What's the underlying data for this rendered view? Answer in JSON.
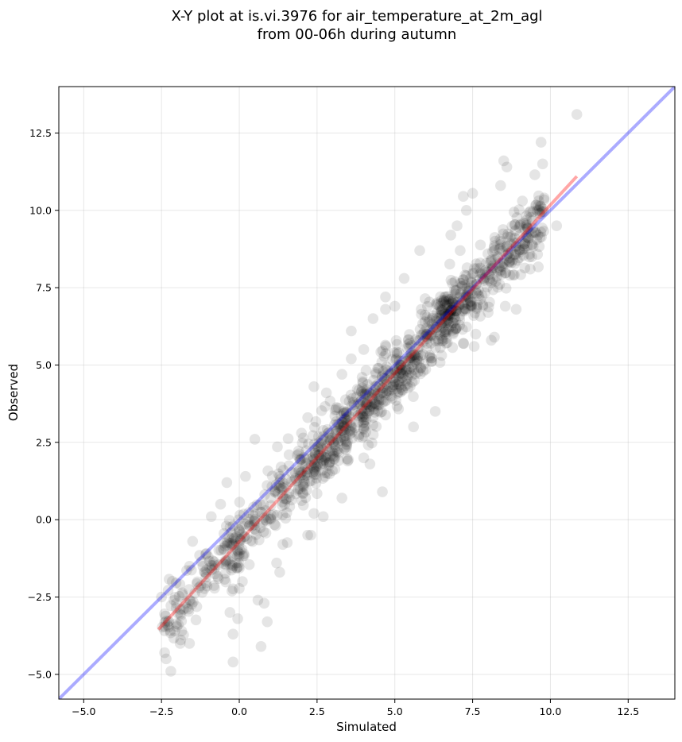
{
  "chart_data": {
    "type": "scatter",
    "title": "X-Y plot at is.vi.3976 for air_temperature_at_2m_agl",
    "subtitle": "from 00-06h during autumn",
    "xlabel": "Simulated",
    "ylabel": "Observed",
    "xlim": [
      -5.8,
      14.0
    ],
    "ylim": [
      -5.8,
      14.0
    ],
    "xticks": [
      -5.0,
      -2.5,
      0.0,
      2.5,
      5.0,
      7.5,
      10.0,
      12.5
    ],
    "yticks": [
      -5.0,
      -2.5,
      0.0,
      2.5,
      5.0,
      7.5,
      10.0,
      12.5
    ],
    "xtick_labels": [
      "−5.0",
      "−2.5",
      "0.0",
      "2.5",
      "5.0",
      "7.5",
      "10.0",
      "12.5"
    ],
    "ytick_labels": [
      "−5.0",
      "−2.5",
      "0.0",
      "2.5",
      "5.0",
      "7.5",
      "10.0",
      "12.5"
    ],
    "grid": true,
    "point_color": "#000000",
    "point_alpha": 0.1,
    "identity_line": {
      "color": "#0000ff",
      "alpha": 0.33,
      "x": [
        -5.8,
        14.0
      ],
      "y": [
        -5.8,
        14.0
      ]
    },
    "fit_line": {
      "color": "#ff0000",
      "alpha": 0.35,
      "x": [
        -2.6,
        10.85
      ],
      "y": [
        -3.55,
        11.1
      ]
    },
    "points": [
      [
        10.85,
        13.1
      ],
      [
        9.7,
        12.2
      ],
      [
        9.75,
        11.5
      ],
      [
        9.5,
        11.15
      ],
      [
        8.5,
        11.6
      ],
      [
        8.6,
        11.4
      ],
      [
        7.2,
        10.45
      ],
      [
        7.5,
        10.55
      ],
      [
        8.4,
        10.8
      ],
      [
        9.1,
        10.3
      ],
      [
        9.8,
        10.4
      ],
      [
        10.2,
        9.5
      ],
      [
        9.6,
        9.2
      ],
      [
        9.3,
        9.1
      ],
      [
        9.4,
        8.5
      ],
      [
        9.35,
        8.1
      ],
      [
        8.8,
        8.4
      ],
      [
        8.7,
        7.9
      ],
      [
        8.9,
        6.8
      ],
      [
        8.55,
        6.9
      ],
      [
        8.0,
        6.7
      ],
      [
        8.2,
        5.9
      ],
      [
        8.1,
        5.8
      ],
      [
        7.6,
        6.0
      ],
      [
        7.55,
        5.6
      ],
      [
        7.2,
        5.7
      ],
      [
        7.3,
        10.0
      ],
      [
        7.0,
        9.5
      ],
      [
        6.8,
        9.2
      ],
      [
        7.1,
        8.7
      ],
      [
        5.8,
        8.7
      ],
      [
        5.3,
        7.8
      ],
      [
        5.0,
        6.9
      ],
      [
        4.7,
        6.8
      ],
      [
        5.6,
        3.0
      ],
      [
        6.3,
        3.5
      ],
      [
        4.0,
        2.0
      ],
      [
        4.2,
        1.8
      ],
      [
        4.6,
        0.9
      ],
      [
        3.3,
        0.7
      ],
      [
        2.4,
        0.2
      ],
      [
        2.7,
        0.1
      ],
      [
        2.3,
        -0.5
      ],
      [
        2.2,
        -0.5
      ],
      [
        1.0,
        0.05
      ],
      [
        1.4,
        -0.8
      ],
      [
        1.2,
        -1.4
      ],
      [
        1.3,
        -1.7
      ],
      [
        0.8,
        -2.7
      ],
      [
        0.9,
        -3.3
      ],
      [
        0.7,
        -4.1
      ],
      [
        0.6,
        -2.6
      ],
      [
        0.1,
        -2.0
      ],
      [
        -0.1,
        -1.4
      ],
      [
        0.0,
        -1.1
      ],
      [
        -0.2,
        -0.8
      ],
      [
        -0.3,
        -3.0
      ],
      [
        -0.05,
        -3.2
      ],
      [
        -0.2,
        -3.7
      ],
      [
        -0.2,
        -4.6
      ],
      [
        -1.0,
        -1.2
      ],
      [
        -1.3,
        -2.2
      ],
      [
        -1.6,
        -2.6
      ],
      [
        -1.9,
        -2.9
      ],
      [
        -2.1,
        -2.6
      ],
      [
        -2.5,
        -2.5
      ],
      [
        -2.4,
        -4.3
      ],
      [
        -2.35,
        -4.5
      ],
      [
        -2.2,
        -4.9
      ],
      [
        -1.9,
        -4.0
      ],
      [
        -1.6,
        -4.0
      ],
      [
        -1.85,
        -3.6
      ],
      [
        -1.5,
        -0.7
      ],
      [
        -0.9,
        0.1
      ],
      [
        -0.6,
        0.5
      ],
      [
        -0.4,
        1.2
      ],
      [
        0.2,
        1.4
      ],
      [
        0.5,
        2.6
      ],
      [
        1.3,
        1.4
      ],
      [
        1.6,
        2.1
      ],
      [
        2.0,
        2.8
      ],
      [
        2.2,
        3.3
      ],
      [
        2.4,
        4.3
      ],
      [
        2.8,
        4.1
      ],
      [
        3.3,
        4.7
      ],
      [
        3.6,
        5.2
      ],
      [
        4.0,
        5.5
      ],
      [
        3.6,
        6.1
      ],
      [
        4.3,
        6.5
      ],
      [
        4.7,
        7.2
      ]
    ]
  }
}
